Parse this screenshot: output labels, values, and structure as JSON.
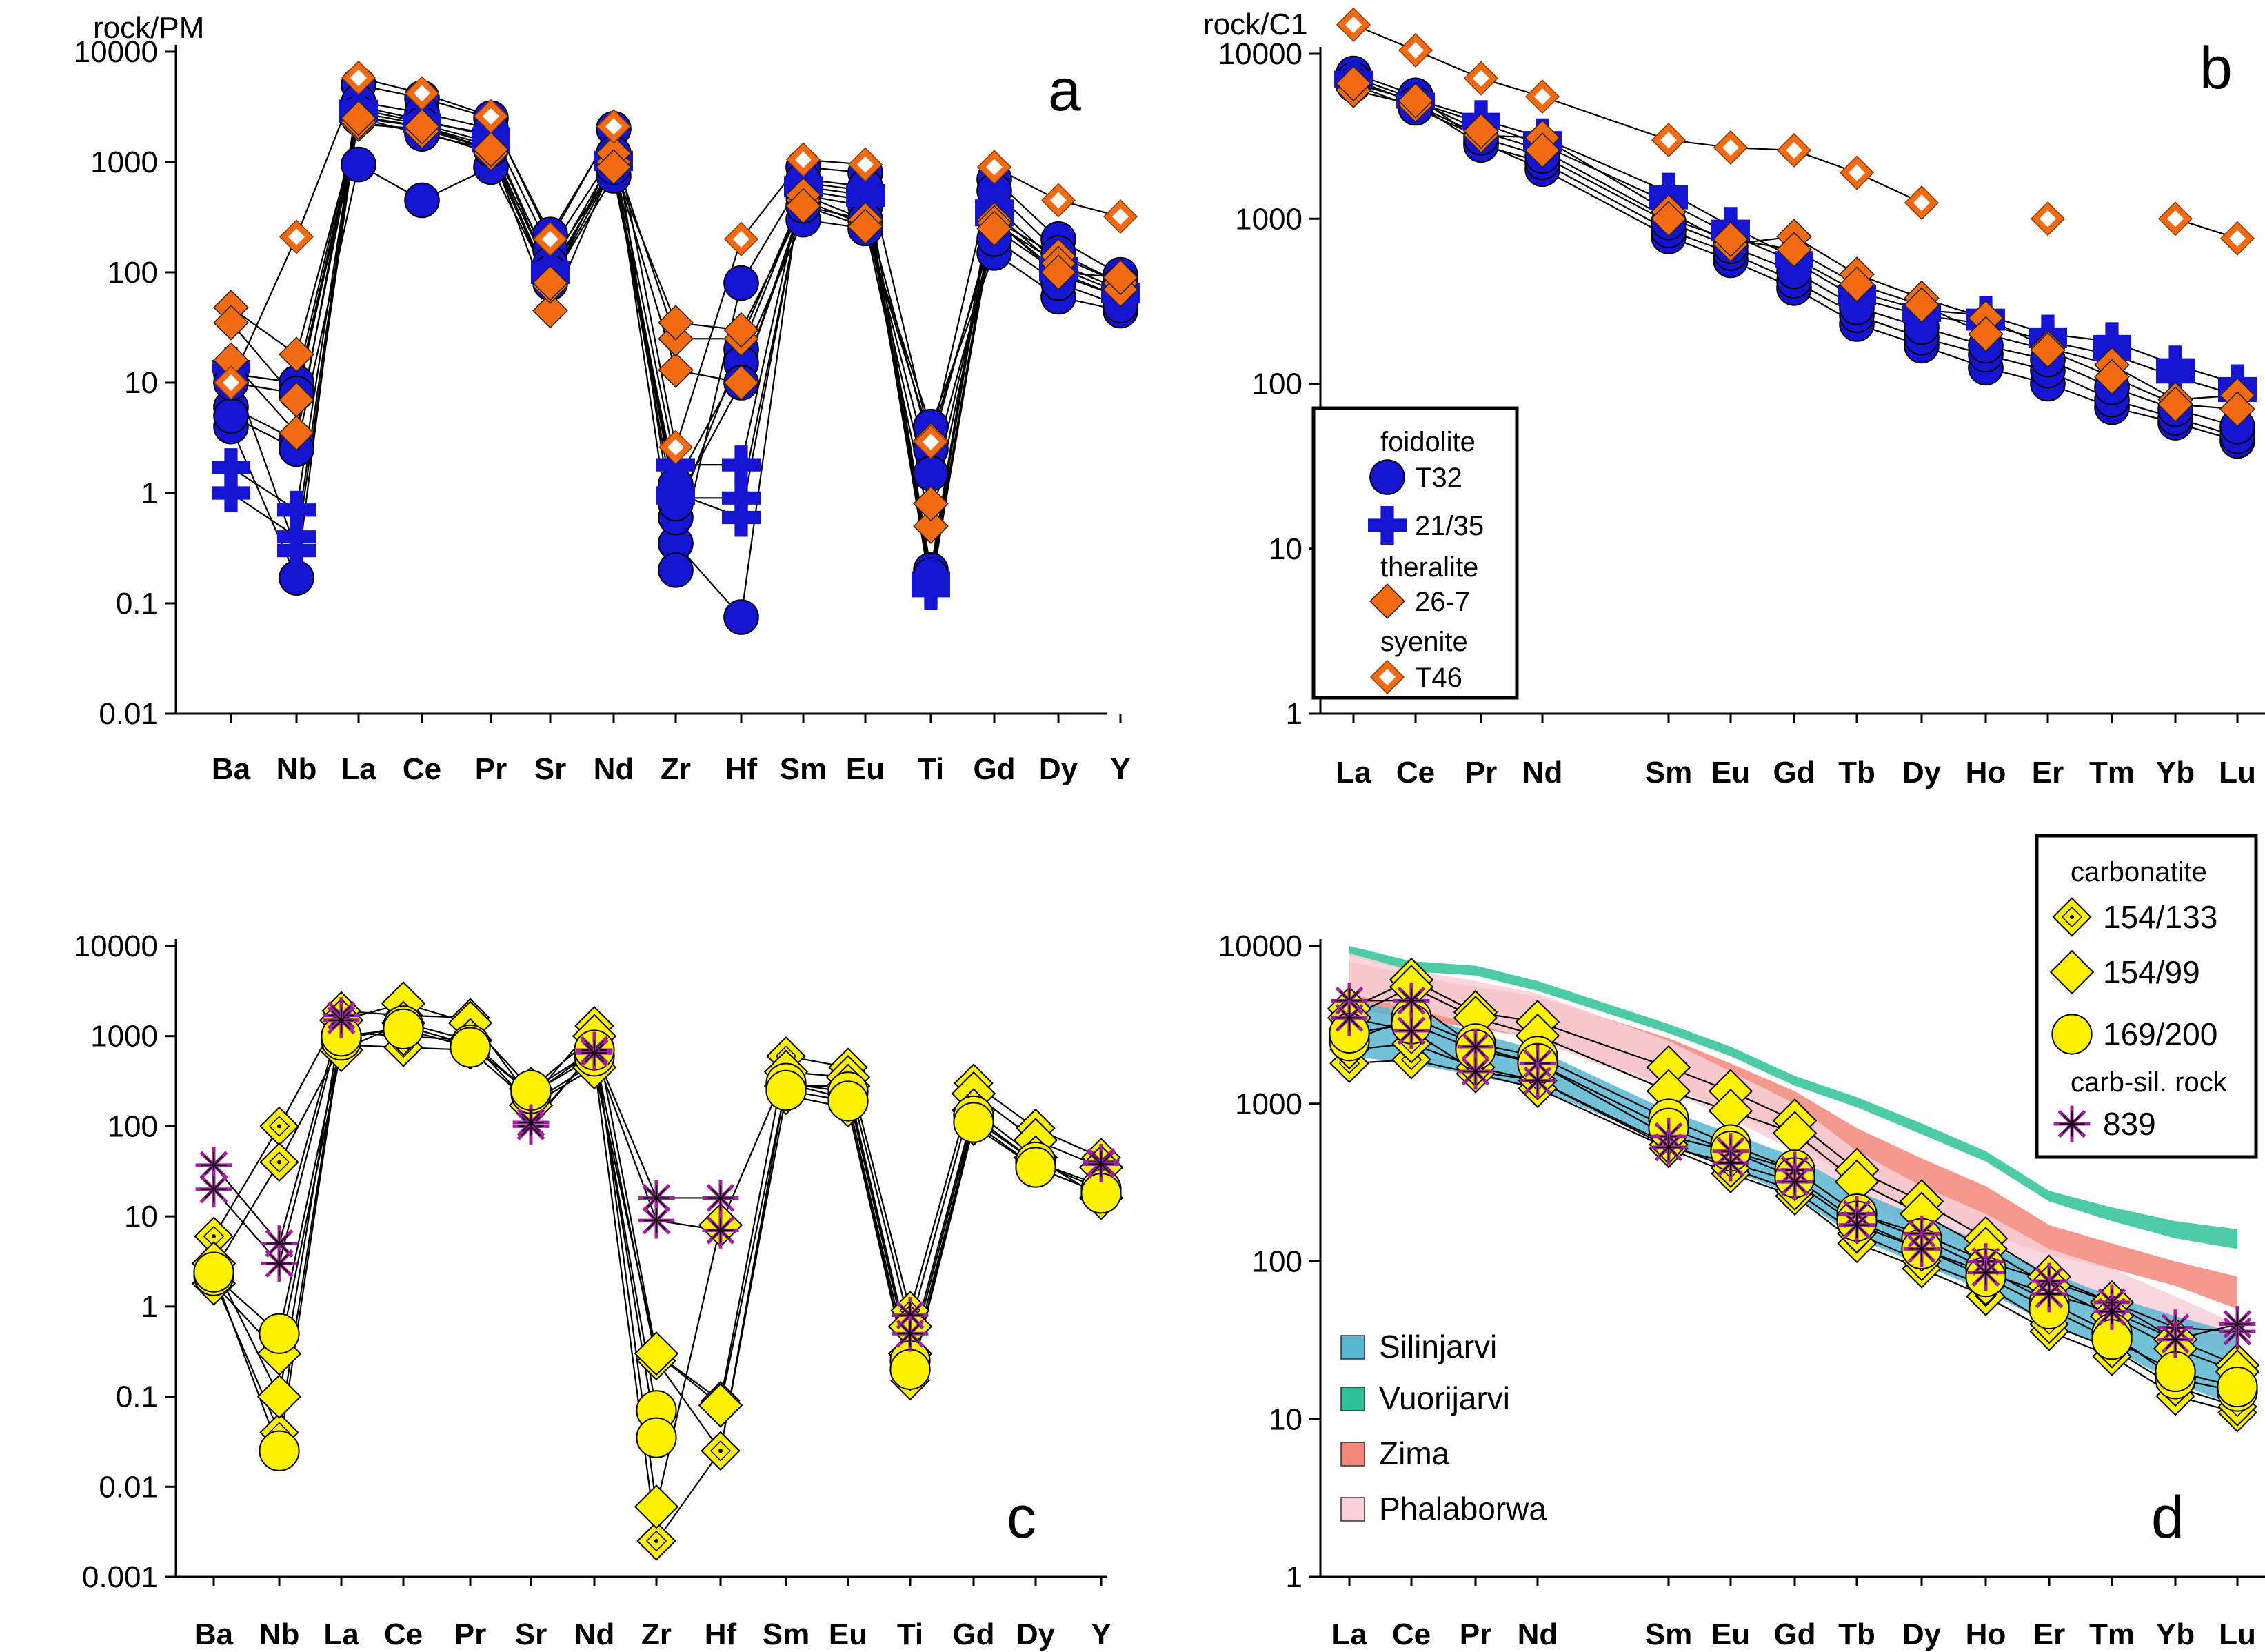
{
  "chart_data": [
    {
      "panel": "a",
      "type": "line",
      "yscale": "log",
      "ylabel": "rock/PM",
      "ylim": [
        0.01,
        10000
      ],
      "yticks": [
        "0.01",
        "0.1",
        "1",
        "10",
        "100",
        "1000",
        "10000"
      ],
      "categories": [
        "Ba",
        "Nb",
        "La",
        "Ce",
        "Pr",
        "Sr",
        "Nd",
        "Zr",
        "Hf",
        "Sm",
        "Eu",
        "Ti",
        "Gd",
        "Dy",
        "Y"
      ],
      "series": [
        {
          "name": "T32",
          "group": "T32",
          "values": [
            4,
            0.17,
            5000,
            3800,
            2500,
            220,
            2000,
            0.35,
            0.075,
            900,
            800,
            0.2,
            700,
            200,
            95
          ]
        },
        {
          "name": "T32",
          "group": "T32",
          "values": [
            6,
            3,
            3500,
            2800,
            2000,
            160,
            1200,
            0.2,
            80,
            700,
            600,
            0.18,
            550,
            150,
            80
          ]
        },
        {
          "name": "T32",
          "group": "T32",
          "values": [
            12,
            10,
            2800,
            2200,
            1500,
            120,
            900,
            0.6,
            20,
            500,
            400,
            2.5,
            300,
            100,
            60
          ]
        },
        {
          "name": "T32",
          "group": "T32",
          "values": [
            5,
            2.5,
            950,
            450,
            900,
            80,
            750,
            1.2,
            15,
            300,
            250,
            4,
            150,
            60,
            45
          ]
        },
        {
          "name": "T32",
          "group": "T32",
          "values": [
            10,
            8,
            2500,
            1800,
            1300,
            100,
            900,
            0.8,
            10,
            400,
            300,
            1.5,
            200,
            80,
            50
          ]
        },
        {
          "name": "21/35",
          "group": "21/35",
          "values": [
            1,
            0.4,
            3000,
            2300,
            1800,
            90,
            1000,
            1,
            0.6,
            600,
            500,
            0.15,
            400,
            120,
            70
          ]
        },
        {
          "name": "21/35",
          "group": "21/35",
          "values": [
            1.7,
            0.7,
            3200,
            2400,
            1700,
            110,
            1100,
            1.8,
            1.8,
            650,
            550,
            0.13,
            350,
            110,
            65
          ]
        },
        {
          "name": "21/35",
          "group": "21/35",
          "values": [
            14,
            0.3,
            2600,
            2100,
            1400,
            95,
            950,
            0.9,
            0.9,
            550,
            450,
            0.17,
            300,
            95,
            60
          ]
        },
        {
          "name": "26-7",
          "group": "26-7",
          "values": [
            48,
            18,
            2200,
            2000,
            1300,
            45,
            1000,
            13,
            10,
            450,
            270,
            0.5,
            300,
            140,
            80
          ]
        },
        {
          "name": "26-7",
          "group": "26-7",
          "values": [
            35,
            7,
            2300,
            1900,
            1200,
            75,
            1200,
            25,
            25,
            500,
            300,
            0.8,
            280,
            120,
            70
          ]
        },
        {
          "name": "26-7",
          "group": "26-7",
          "values": [
            16,
            3.5,
            2500,
            2100,
            1300,
            80,
            900,
            35,
            30,
            400,
            260,
            3,
            250,
            100,
            90
          ]
        },
        {
          "name": "T46",
          "group": "T46",
          "values": [
            10,
            210,
            5800,
            4200,
            2600,
            200,
            2100,
            2.6,
            200,
            1050,
            950,
            2.9,
            900,
            450,
            320
          ]
        }
      ]
    },
    {
      "panel": "b",
      "type": "line",
      "yscale": "log",
      "ylabel": "rock/C1",
      "ylim": [
        1,
        10000
      ],
      "yticks": [
        "1",
        "10",
        "100",
        "1000",
        "10000"
      ],
      "categories": [
        "La",
        "Ce",
        "Pr",
        "Nd",
        "Sm",
        "Eu",
        "Gd",
        "Tb",
        "Dy",
        "Ho",
        "Er",
        "Tm",
        "Yb",
        "Lu"
      ],
      "series": [
        {
          "name": "T32",
          "group": "T32",
          "values": [
            7600,
            5600,
            2900,
            2000,
            780,
            560,
            380,
            230,
            170,
            125,
            100,
            72,
            58,
            45
          ]
        },
        {
          "name": "T32",
          "group": "T32",
          "values": [
            7000,
            5000,
            2800,
            2200,
            850,
            620,
            420,
            260,
            190,
            150,
            120,
            80,
            62,
            48
          ]
        },
        {
          "name": "T32",
          "group": "T32",
          "values": [
            6500,
            4700,
            3100,
            2400,
            950,
            680,
            480,
            290,
            220,
            170,
            140,
            95,
            70,
            55
          ]
        },
        {
          "name": "21/35",
          "group": "21/35",
          "values": [
            7200,
            5300,
            4000,
            3100,
            1450,
            900,
            580,
            360,
            280,
            260,
            200,
            180,
            130,
            100
          ]
        },
        {
          "name": "21/35",
          "group": "21/35",
          "values": [
            6800,
            5100,
            3800,
            2800,
            1250,
            800,
            550,
            330,
            260,
            230,
            180,
            150,
            110,
            85
          ]
        },
        {
          "name": "26-7",
          "group": "26-7",
          "values": [
            6000,
            4900,
            3200,
            3100,
            1100,
            700,
            780,
            460,
            330,
            250,
            165,
            130,
            80,
            85
          ]
        },
        {
          "name": "26-7",
          "group": "26-7",
          "values": [
            6600,
            5200,
            3400,
            2600,
            1000,
            750,
            650,
            400,
            300,
            200,
            160,
            110,
            75,
            70
          ]
        },
        {
          "name": "T46",
          "group": "T46",
          "values": [
            15000,
            10500,
            7100,
            5500,
            3000,
            2700,
            2600,
            1900,
            1250,
            null,
            1000,
            null,
            1000,
            760
          ]
        }
      ]
    },
    {
      "panel": "c",
      "type": "line",
      "yscale": "log",
      "ylim": [
        0.001,
        10000
      ],
      "yticks": [
        "0.001",
        "0.01",
        "0.1",
        "1",
        "10",
        "100",
        "1000",
        "10000"
      ],
      "categories": [
        "Ba",
        "Nb",
        "La",
        "Ce",
        "Pr",
        "Sr",
        "Nd",
        "Zr",
        "Hf",
        "Sm",
        "Eu",
        "Ti",
        "Gd",
        "Dy",
        "Y"
      ],
      "series": [
        {
          "name": "154/133",
          "group": "154/133",
          "values": [
            6,
            100,
            1900,
            1700,
            1600,
            200,
            1300,
            0.3,
            0.09,
            600,
            450,
            0.9,
            300,
            95,
            45
          ]
        },
        {
          "name": "154/133",
          "group": "154/133",
          "values": [
            2.5,
            40,
            800,
            750,
            700,
            180,
            500,
            0.0025,
            0.025,
            220,
            160,
            0.15,
            100,
            35,
            18
          ]
        },
        {
          "name": "154/133",
          "group": "154/133",
          "values": [
            2,
            0.04,
            1100,
            1000,
            900,
            220,
            700,
            0.25,
            0.025,
            300,
            200,
            0.15,
            120,
            40,
            22
          ]
        },
        {
          "name": "154/99",
          "group": "154/99",
          "values": [
            3,
            0.1,
            1500,
            2300,
            1400,
            260,
            1000,
            0.006,
            8,
            400,
            350,
            0.6,
            230,
            70,
            35
          ]
        },
        {
          "name": "154/99",
          "group": "154/99",
          "values": [
            1.8,
            0.3,
            700,
            1400,
            900,
            170,
            450,
            0.3,
            0.08,
            280,
            280,
            0.3,
            150,
            45,
            16
          ]
        },
        {
          "name": "169/200",
          "group": "169/200",
          "values": [
            2.2,
            0.5,
            900,
            1300,
            800,
            230,
            600,
            0.07,
            null,
            300,
            240,
            0.25,
            130,
            40,
            20
          ]
        },
        {
          "name": "169/200",
          "group": "169/200",
          "values": [
            2.4,
            0.025,
            1000,
            1200,
            750,
            250,
            700,
            0.035,
            null,
            250,
            190,
            0.2,
            110,
            35,
            18
          ]
        },
        {
          "name": "839",
          "group": "839",
          "values": [
            37,
            5,
            1700,
            null,
            null,
            100,
            700,
            16,
            16,
            null,
            null,
            0.8,
            null,
            null,
            40
          ]
        },
        {
          "name": "839",
          "group": "839",
          "values": [
            20,
            3,
            1500,
            null,
            null,
            110,
            650,
            9,
            7,
            null,
            null,
            0.5,
            null,
            null,
            38
          ]
        }
      ]
    },
    {
      "panel": "d",
      "type": "line",
      "yscale": "log",
      "ylim": [
        1,
        10000
      ],
      "yticks": [
        "1",
        "10",
        "100",
        "1000",
        "10000"
      ],
      "categories": [
        "La",
        "Ce",
        "Pr",
        "Nd",
        "Sm",
        "Eu",
        "Gd",
        "Tb",
        "Dy",
        "Ho",
        "Er",
        "Tm",
        "Yb",
        "Lu"
      ],
      "fields": [
        {
          "name": "Vuorijarvi",
          "color": "#2ec29a",
          "upper": [
            10000,
            8000,
            7500,
            6000,
            3200,
            2300,
            1500,
            1100,
            750,
            500,
            280,
            220,
            180,
            160
          ],
          "lower": [
            8700,
            6900,
            6500,
            5200,
            2800,
            2000,
            1300,
            950,
            640,
            430,
            240,
            180,
            140,
            120
          ]
        },
        {
          "name": "Zima",
          "color": "#f3877a",
          "upper": [
            8000,
            6500,
            5500,
            4800,
            2600,
            1800,
            1200,
            700,
            450,
            300,
            170,
            130,
            100,
            80
          ],
          "lower": [
            4000,
            3500,
            3000,
            2600,
            1300,
            900,
            550,
            320,
            210,
            150,
            110,
            90,
            70,
            50
          ]
        },
        {
          "name": "Phalaborwa",
          "color": "#f9d0d8",
          "upper": [
            9000,
            7000,
            6000,
            5000,
            2500,
            1600,
            1000,
            500,
            300,
            200,
            120,
            90,
            60,
            40
          ],
          "lower": [
            5000,
            4000,
            3200,
            2500,
            1200,
            800,
            500,
            250,
            160,
            110,
            70,
            50,
            35,
            25
          ]
        },
        {
          "name": "Silinjarvi",
          "color": "#5ab6d2",
          "upper": [
            4500,
            3800,
            2800,
            2200,
            900,
            650,
            460,
            280,
            190,
            130,
            85,
            60,
            45,
            35
          ],
          "lower": [
            2000,
            1800,
            1500,
            1250,
            560,
            380,
            260,
            140,
            95,
            65,
            40,
            28,
            17,
            12
          ]
        }
      ],
      "series": [
        {
          "name": "154/133",
          "group": "154/133",
          "values": [
            1800,
            1900,
            1550,
            1250,
            520,
            360,
            260,
            130,
            90,
            60,
            36,
            25,
            14,
            11
          ]
        },
        {
          "name": "154/133",
          "group": "154/133",
          "values": [
            2200,
            2400,
            1700,
            1400,
            550,
            390,
            280,
            150,
            100,
            70,
            40,
            28,
            16,
            12
          ]
        },
        {
          "name": "154/99",
          "group": "154/99",
          "values": [
            4000,
            6100,
            3800,
            3300,
            1700,
            1200,
            780,
            380,
            240,
            140,
            80,
            55,
            32,
            22
          ]
        },
        {
          "name": "154/99",
          "group": "154/99",
          "values": [
            3500,
            5500,
            3500,
            2700,
            1200,
            900,
            650,
            320,
            200,
            120,
            70,
            45,
            28,
            20
          ]
        },
        {
          "name": "169/200",
          "group": "169/200",
          "values": [
            2500,
            3500,
            2400,
            2000,
            800,
            550,
            380,
            200,
            140,
            90,
            55,
            35,
            18,
            15
          ]
        },
        {
          "name": "169/200",
          "group": "169/200",
          "values": [
            2800,
            3200,
            2200,
            1800,
            700,
            500,
            340,
            180,
            120,
            80,
            50,
            32,
            20,
            16
          ]
        },
        {
          "name": "839",
          "group": "839",
          "values": [
            4500,
            4500,
            2300,
            1800,
            620,
            500,
            380,
            200,
            150,
            100,
            75,
            55,
            38,
            36
          ]
        },
        {
          "name": "839",
          "group": "839",
          "values": [
            3500,
            2900,
            1600,
            1400,
            530,
            420,
            320,
            170,
            120,
            85,
            62,
            48,
            32,
            40
          ]
        }
      ]
    }
  ],
  "panels": {
    "a": {
      "letter": "a",
      "ylabel": "rock/PM"
    },
    "b": {
      "letter": "b",
      "ylabel": "rock/C1"
    },
    "c": {
      "letter": "c"
    },
    "d": {
      "letter": "d"
    }
  },
  "legend_b": {
    "items": [
      {
        "kind": "header",
        "text": "foidolite"
      },
      {
        "kind": "entry",
        "marker": "circle",
        "text": "T32"
      },
      {
        "kind": "entry",
        "marker": "plus",
        "text": "21/35"
      },
      {
        "kind": "header",
        "text": "theralite"
      },
      {
        "kind": "entry",
        "marker": "diamond",
        "text": "26-7"
      },
      {
        "kind": "header",
        "text": "syenite"
      },
      {
        "kind": "entry",
        "marker": "hollow-diamond",
        "text": "T46"
      }
    ]
  },
  "legend_d": {
    "items": [
      {
        "kind": "header",
        "text": "carbonatite"
      },
      {
        "kind": "entry",
        "marker": "dot-diamond",
        "text": "154/133"
      },
      {
        "kind": "entry",
        "marker": "yellow-diamond",
        "text": "154/99"
      },
      {
        "kind": "entry",
        "marker": "yellow-circle",
        "text": "169/200"
      },
      {
        "kind": "header",
        "text": "carb-sil. rock"
      },
      {
        "kind": "entry",
        "marker": "star",
        "text": "839"
      }
    ]
  },
  "field_legend_d": [
    {
      "text": "Silinjarvi",
      "color": "#5ab6d2"
    },
    {
      "text": "Vuorijarvi",
      "color": "#2ec29a"
    },
    {
      "text": "Zima",
      "color": "#f3877a"
    },
    {
      "text": "Phalaborwa",
      "color": "#f9d0d8"
    }
  ],
  "colors": {
    "blue": "#1414d2",
    "orange": "#f26a12",
    "yellow": "#fff200",
    "purple": "#a020a0"
  }
}
